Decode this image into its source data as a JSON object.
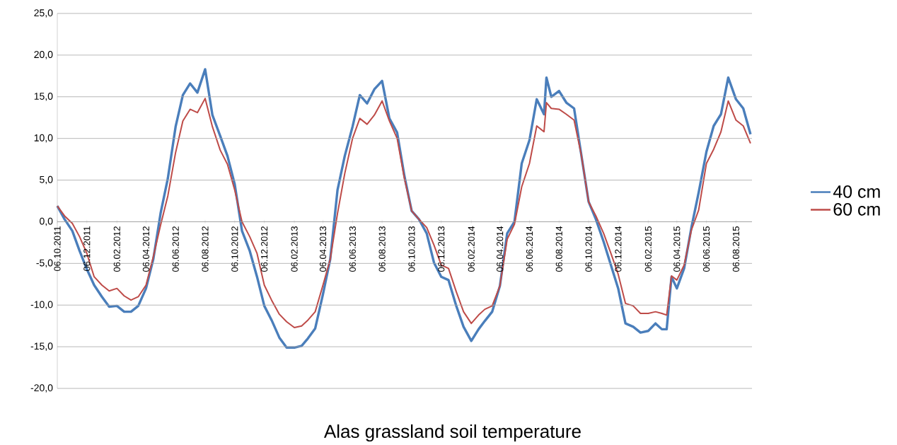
{
  "chart_data": {
    "type": "line",
    "title": "Alas grassland soil temperature",
    "x": [
      "2011-10-06",
      "2011-10-21",
      "2011-11-06",
      "2011-11-21",
      "2011-12-06",
      "2011-12-21",
      "2012-01-06",
      "2012-01-21",
      "2012-02-06",
      "2012-02-21",
      "2012-03-06",
      "2012-03-21",
      "2012-04-06",
      "2012-04-21",
      "2012-05-06",
      "2012-05-21",
      "2012-06-06",
      "2012-06-21",
      "2012-07-06",
      "2012-07-21",
      "2012-08-06",
      "2012-08-21",
      "2012-09-06",
      "2012-09-21",
      "2012-10-06",
      "2012-10-21",
      "2012-11-06",
      "2012-11-21",
      "2012-12-06",
      "2012-12-21",
      "2013-01-06",
      "2013-01-21",
      "2013-02-06",
      "2013-02-21",
      "2013-03-06",
      "2013-03-21",
      "2013-04-06",
      "2013-04-21",
      "2013-05-06",
      "2013-05-21",
      "2013-06-06",
      "2013-06-21",
      "2013-07-06",
      "2013-07-21",
      "2013-08-06",
      "2013-08-21",
      "2013-09-06",
      "2013-09-21",
      "2013-10-06",
      "2013-10-21",
      "2013-11-06",
      "2013-11-21",
      "2013-12-06",
      "2013-12-21",
      "2014-01-06",
      "2014-01-21",
      "2014-02-06",
      "2014-02-21",
      "2014-03-06",
      "2014-03-21",
      "2014-04-06",
      "2014-04-21",
      "2014-05-06",
      "2014-05-21",
      "2014-06-06",
      "2014-06-21",
      "2014-07-06",
      "2014-07-11",
      "2014-07-21",
      "2014-08-06",
      "2014-08-21",
      "2014-09-06",
      "2014-09-21",
      "2014-10-06",
      "2014-10-21",
      "2014-11-06",
      "2014-11-21",
      "2014-12-06",
      "2014-12-21",
      "2015-01-06",
      "2015-01-21",
      "2015-02-06",
      "2015-02-21",
      "2015-03-06",
      "2015-03-16",
      "2015-03-26",
      "2015-04-06",
      "2015-04-21",
      "2015-05-06",
      "2015-05-21",
      "2015-06-06",
      "2015-06-21",
      "2015-07-06",
      "2015-07-21",
      "2015-08-06",
      "2015-08-21",
      "2015-09-05"
    ],
    "series": [
      {
        "name": "40 cm",
        "color": "#4a7ebb",
        "values": [
          1.9,
          0.3,
          -1.1,
          -3.5,
          -5.7,
          -7.6,
          -9.0,
          -10.2,
          -10.1,
          -10.8,
          -10.8,
          -10.1,
          -8.0,
          -4.5,
          1.0,
          5.2,
          11.4,
          15.2,
          16.6,
          15.5,
          18.3,
          12.8,
          10.3,
          7.9,
          4.5,
          -1.1,
          -3.5,
          -6.6,
          -10.1,
          -11.8,
          -13.9,
          -15.1,
          -15.1,
          -14.9,
          -14.0,
          -12.8,
          -8.7,
          -4.5,
          3.8,
          7.9,
          11.4,
          15.2,
          14.2,
          15.9,
          16.9,
          12.4,
          10.7,
          5.5,
          1.3,
          0.3,
          -1.4,
          -4.9,
          -6.6,
          -7.0,
          -10.1,
          -12.6,
          -14.3,
          -12.9,
          -11.9,
          -10.8,
          -7.7,
          -1.4,
          0.0,
          7.0,
          9.8,
          14.7,
          12.9,
          17.3,
          15.0,
          15.7,
          14.3,
          13.6,
          8.0,
          2.4,
          0.3,
          -2.4,
          -5.2,
          -8.0,
          -12.2,
          -12.6,
          -13.3,
          -13.1,
          -12.2,
          -12.9,
          -12.9,
          -6.6,
          -8.0,
          -5.6,
          -0.7,
          3.5,
          8.4,
          11.5,
          12.9,
          17.3,
          14.7,
          13.6,
          10.5
        ]
      },
      {
        "name": "60 cm",
        "color": "#be4b48",
        "values": [
          1.9,
          0.7,
          -0.2,
          -1.8,
          -3.8,
          -6.6,
          -7.6,
          -8.3,
          -8.0,
          -8.9,
          -9.4,
          -9.0,
          -7.6,
          -4.2,
          -0.4,
          3.1,
          8.3,
          12.1,
          13.5,
          13.1,
          14.8,
          11.4,
          8.6,
          6.9,
          3.8,
          0.0,
          -1.8,
          -3.8,
          -7.6,
          -9.4,
          -11.1,
          -12.0,
          -12.7,
          -12.5,
          -11.8,
          -10.8,
          -7.6,
          -4.5,
          1.0,
          5.8,
          10.0,
          12.4,
          11.7,
          12.8,
          14.5,
          12.1,
          10.0,
          5.2,
          1.3,
          0.3,
          -0.7,
          -2.8,
          -5.2,
          -5.6,
          -8.4,
          -10.8,
          -12.2,
          -11.2,
          -10.5,
          -10.1,
          -7.7,
          -2.1,
          -0.3,
          4.2,
          7.0,
          11.5,
          10.8,
          14.3,
          13.6,
          13.5,
          12.9,
          12.2,
          8.0,
          2.4,
          0.7,
          -1.4,
          -3.8,
          -6.3,
          -9.8,
          -10.1,
          -11.0,
          -11.0,
          -10.8,
          -11.0,
          -11.2,
          -6.5,
          -7.0,
          -5.2,
          -1.0,
          1.4,
          7.0,
          8.7,
          10.8,
          14.5,
          12.2,
          11.5,
          9.4
        ]
      }
    ],
    "xlim": [
      "2011-10-06",
      "2015-09-08"
    ],
    "xticks": [
      {
        "value": "2011-10-06",
        "label": "06.10.2011"
      },
      {
        "value": "2011-12-06",
        "label": "06.12.2011"
      },
      {
        "value": "2012-02-06",
        "label": "06.02.2012"
      },
      {
        "value": "2012-04-06",
        "label": "06.04.2012"
      },
      {
        "value": "2012-06-06",
        "label": "06.06.2012"
      },
      {
        "value": "2012-08-06",
        "label": "06.08.2012"
      },
      {
        "value": "2012-10-06",
        "label": "06.10.2012"
      },
      {
        "value": "2012-12-06",
        "label": "06.12.2012"
      },
      {
        "value": "2013-02-06",
        "label": "06.02.2013"
      },
      {
        "value": "2013-04-06",
        "label": "06.04.2013"
      },
      {
        "value": "2013-06-06",
        "label": "06.06.2013"
      },
      {
        "value": "2013-08-06",
        "label": "06.08.2013"
      },
      {
        "value": "2013-10-06",
        "label": "06.10.2013"
      },
      {
        "value": "2013-12-06",
        "label": "06.12.2013"
      },
      {
        "value": "2014-02-06",
        "label": "06.02.2014"
      },
      {
        "value": "2014-04-06",
        "label": "06.04.2014"
      },
      {
        "value": "2014-06-06",
        "label": "06.06.2014"
      },
      {
        "value": "2014-08-06",
        "label": "06.08.2014"
      },
      {
        "value": "2014-10-06",
        "label": "06.10.2014"
      },
      {
        "value": "2014-12-06",
        "label": "06.12.2014"
      },
      {
        "value": "2015-02-06",
        "label": "06.02.2015"
      },
      {
        "value": "2015-04-06",
        "label": "06.04.2015"
      },
      {
        "value": "2015-06-06",
        "label": "06.06.2015"
      },
      {
        "value": "2015-08-06",
        "label": "06.08.2015"
      }
    ],
    "ylim": [
      -20,
      25
    ],
    "yticks": [
      {
        "value": -20,
        "label": "-20,0"
      },
      {
        "value": -15,
        "label": "-15,0"
      },
      {
        "value": -10,
        "label": "-10,0"
      },
      {
        "value": -5,
        "label": "-5,0"
      },
      {
        "value": 0,
        "label": "0,0"
      },
      {
        "value": 5,
        "label": "5,0"
      },
      {
        "value": 10,
        "label": "10,0"
      },
      {
        "value": 15,
        "label": "15,0"
      },
      {
        "value": 20,
        "label": "20,0"
      },
      {
        "value": 25,
        "label": "25,0"
      }
    ],
    "grid": "y",
    "legend": "right"
  }
}
